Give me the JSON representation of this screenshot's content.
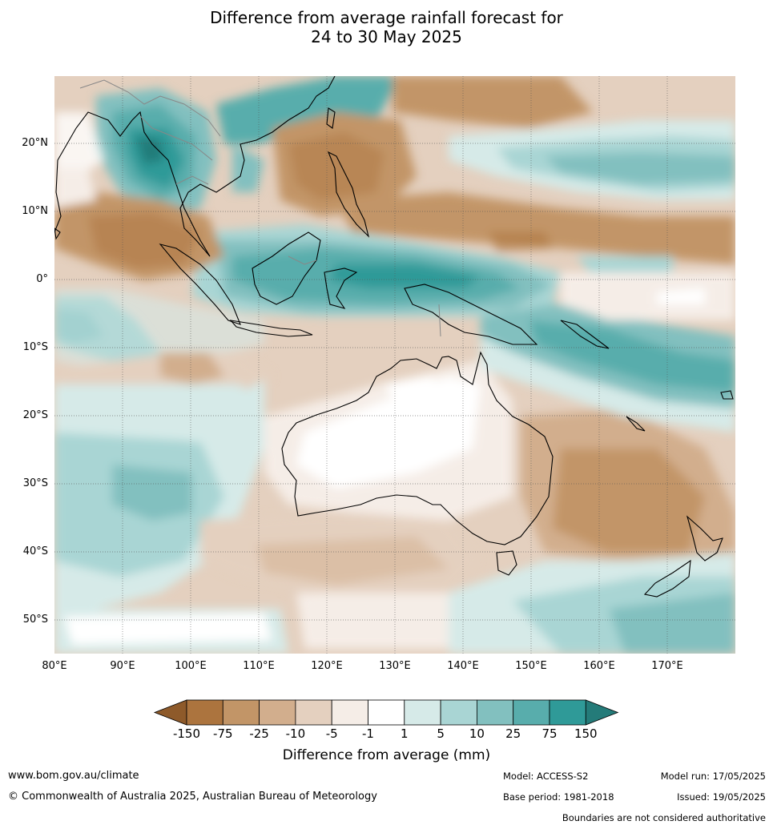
{
  "title_line1": "Difference from average rainfall forecast for",
  "title_line2": "24 to 30 May 2025",
  "lat_labels": [
    "20°N",
    "10°N",
    "0°",
    "10°S",
    "20°S",
    "30°S",
    "40°S",
    "50°S"
  ],
  "lon_labels": [
    "80°E",
    "90°E",
    "100°E",
    "110°E",
    "120°E",
    "130°E",
    "140°E",
    "150°E",
    "160°E",
    "170°E"
  ],
  "colorbar": {
    "labels": [
      "-150",
      "-75",
      "-25",
      "-10",
      "-5",
      "-1",
      "1",
      "5",
      "10",
      "25",
      "75",
      "150"
    ],
    "colors": [
      "#8e5a2a",
      "#ac743e",
      "#c29567",
      "#d2ae8d",
      "#e4d0bf",
      "#f5ede7",
      "#ffffff",
      "#d6eae8",
      "#a9d5d4",
      "#82c0bf",
      "#58adac",
      "#2f9a98",
      "#247b79"
    ],
    "title": "Difference from average (mm)"
  },
  "footer": {
    "website": "www.bom.gov.au/climate",
    "copyright": "© Commonwealth of Australia 2025, Australian Bureau of Meteorology",
    "model": "Model: ACCESS-S2",
    "base_period": "Base period: 1981-2018",
    "model_run": "Model run: 17/05/2025",
    "issued": "Issued: 19/05/2025",
    "disclaimer": "Boundaries are not considered authoritative"
  }
}
